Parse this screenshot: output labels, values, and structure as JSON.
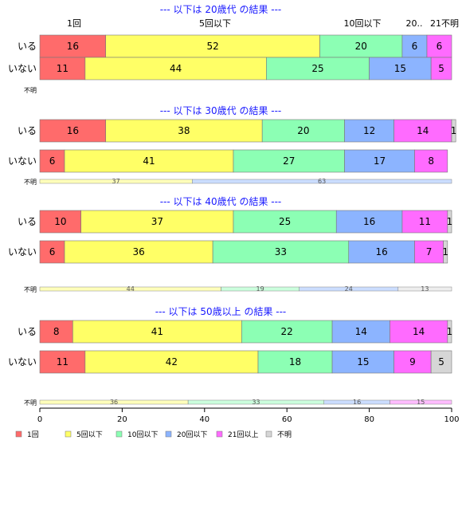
{
  "colors": {
    "1回": "#ff6b6b",
    "5回以下": "#ffff66",
    "10回以下": "#8cffb4",
    "20回以下": "#8cb4ff",
    "21回以上": "#ff6bff",
    "不明": "#d6d6d6"
  },
  "chart_data": {
    "type": "bar",
    "stacked": true,
    "orientation": "horizontal",
    "xlim": [
      0,
      100
    ],
    "xticks": [
      0,
      20,
      40,
      60,
      80,
      100
    ],
    "categories": [
      "1回",
      "5回以下",
      "10回以下",
      "20回以下",
      "21回以上",
      "不明"
    ],
    "legend": [
      "1回",
      "5回以下",
      "10回以下",
      "20回以下",
      "21回以上",
      "不明"
    ],
    "legend_position": "bottom",
    "header_labels": [
      "1回",
      "5回以下",
      "10回以下",
      "20..",
      "21不明"
    ],
    "panels": [
      {
        "title": "--- 以下は 20歳代 の結果 ---",
        "rows": [
          {
            "label": "いる",
            "values": [
              16,
              52,
              20,
              6,
              6,
              0
            ]
          },
          {
            "label": "いない",
            "values": [
              11,
              44,
              25,
              15,
              5,
              0
            ]
          }
        ],
        "unknown": {
          "label": "不明",
          "values": []
        }
      },
      {
        "title": "--- 以下は 30歳代 の結果 ---",
        "rows": [
          {
            "label": "いる",
            "values": [
              16,
              38,
              20,
              12,
              14,
              1
            ]
          },
          {
            "label": "いない",
            "values": [
              6,
              41,
              27,
              17,
              8,
              0
            ]
          }
        ],
        "unknown": {
          "label": "不明",
          "values": [
            0,
            37,
            0,
            63,
            0,
            0
          ]
        }
      },
      {
        "title": "--- 以下は 40歳代 の結果 ---",
        "rows": [
          {
            "label": "いる",
            "values": [
              10,
              37,
              25,
              16,
              11,
              1
            ]
          },
          {
            "label": "いない",
            "values": [
              6,
              36,
              33,
              16,
              7,
              1
            ]
          }
        ],
        "unknown": {
          "label": "不明",
          "values": [
            0,
            44,
            19,
            24,
            0,
            13
          ]
        }
      },
      {
        "title": "--- 以下は 50歳以上 の結果 ---",
        "rows": [
          {
            "label": "いる",
            "values": [
              8,
              41,
              22,
              14,
              14,
              1
            ]
          },
          {
            "label": "いない",
            "values": [
              11,
              42,
              18,
              15,
              9,
              5
            ]
          }
        ],
        "unknown": {
          "label": "不明",
          "values": [
            0,
            36,
            33,
            16,
            15,
            0
          ]
        }
      }
    ]
  }
}
